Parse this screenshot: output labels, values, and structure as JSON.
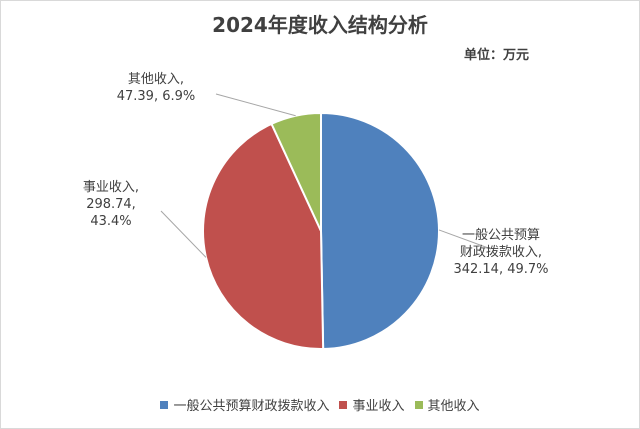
{
  "unit_label": "单位：万元",
  "colors": [
    "#4f81bd",
    "#c0504d",
    "#9bbb59"
  ],
  "chart_data": {
    "type": "pie",
    "title": "2024年度收入结构分析",
    "unit": "万元",
    "legend_position": "bottom",
    "slices": [
      {
        "name": "一般公共预算财政拨款收入",
        "value": 342.14,
        "percent": "49.7%",
        "label_lines": [
          "一般公共预算",
          "财政拨款收入,",
          "342.14, 49.7%"
        ]
      },
      {
        "name": "事业收入",
        "value": 298.74,
        "percent": "43.4%",
        "label_lines": [
          "事业收入,",
          "298.74,",
          "43.4%"
        ]
      },
      {
        "name": "其他收入",
        "value": 47.39,
        "percent": "6.9%",
        "label_lines": [
          "其他收入,",
          "47.39, 6.9%"
        ]
      }
    ]
  }
}
